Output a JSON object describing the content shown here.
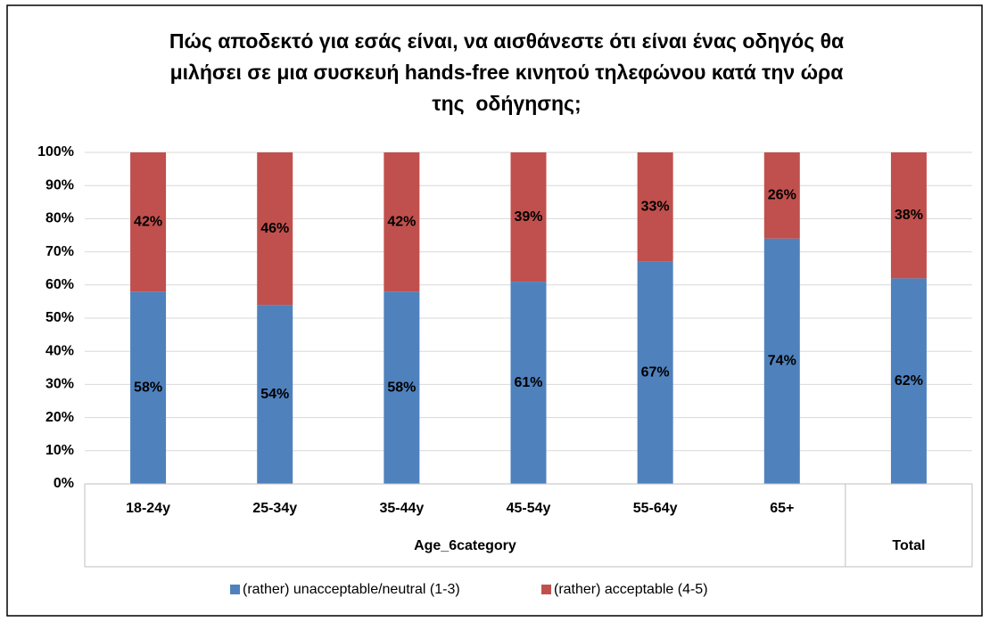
{
  "chart_data": {
    "type": "stacked_bar",
    "title": [
      "Πώς αποδεκτό για εσάς είναι, να αισθάνεστε ότι είναι ένας οδηγός θα",
      "μιλήσει σε μια συσκευή hands-free κινητού τηλεφώνου κατά την ώρα",
      "της  οδήγησης;"
    ],
    "category_groups": [
      {
        "name": "Age_6category",
        "categories": [
          "18-24y",
          "25-34y",
          "35-44y",
          "45-54y",
          "55-64y",
          "65+"
        ]
      },
      {
        "name": "Total",
        "categories": [
          null
        ]
      }
    ],
    "series": [
      {
        "name": "(rather) unacceptable/neutral (1-3)",
        "color": "#4f81bd",
        "values": [
          58,
          54,
          58,
          61,
          67,
          74,
          62
        ],
        "value_labels": [
          "58%",
          "54%",
          "58%",
          "61%",
          "67%",
          "74%",
          "62%"
        ]
      },
      {
        "name": "(rather) acceptable (4-5)",
        "color": "#c0504d",
        "values": [
          42,
          46,
          42,
          39,
          33,
          26,
          38
        ],
        "value_labels": [
          "42%",
          "46%",
          "42%",
          "39%",
          "33%",
          "26%",
          "38%"
        ]
      }
    ],
    "ylim": [
      0,
      100
    ],
    "yticks": [
      {
        "value": 0,
        "label": "0%"
      },
      {
        "value": 10,
        "label": "10%"
      },
      {
        "value": 20,
        "label": "20%"
      },
      {
        "value": 30,
        "label": "30%"
      },
      {
        "value": 40,
        "label": "40%"
      },
      {
        "value": 50,
        "label": "50%"
      },
      {
        "value": 60,
        "label": "60%"
      },
      {
        "value": 70,
        "label": "70%"
      },
      {
        "value": 80,
        "label": "80%"
      },
      {
        "value": 90,
        "label": "90%"
      },
      {
        "value": 100,
        "label": "100%"
      }
    ],
    "grid": true,
    "legend": "bottom"
  }
}
